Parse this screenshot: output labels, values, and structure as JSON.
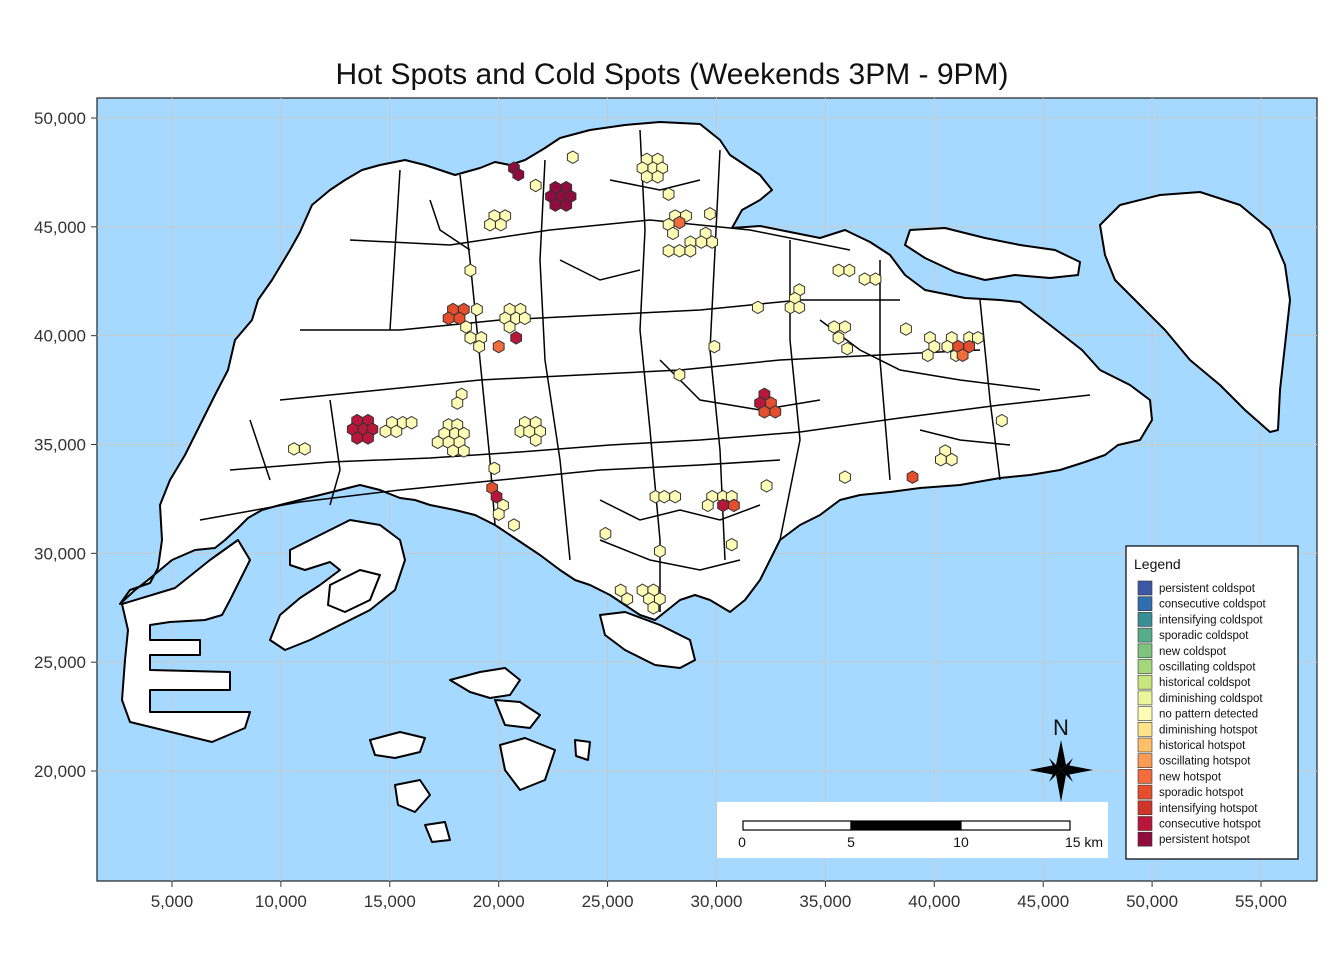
{
  "title": "Hot Spots and Cold Spots (Weekends 3PM - 9PM)",
  "colors": {
    "sea": "#a6d9ff",
    "land": "#ffffff",
    "no_pattern": "#fffcb5",
    "oscillating_hotspot": "#f26c3c",
    "sporadic_hotspot": "#e44e2d",
    "consecutive_hotspot": "#b8173b",
    "persistent_hotspot": "#900c3f"
  },
  "axes": {
    "x_ticks": [
      "5,000",
      "10,000",
      "15,000",
      "20,000",
      "25,000",
      "30,000",
      "35,000",
      "40,000",
      "45,000",
      "50,000",
      "55,000"
    ],
    "y_ticks": [
      "50,000",
      "45,000",
      "40,000",
      "35,000",
      "30,000",
      "25,000",
      "20,000"
    ],
    "grid": true
  },
  "legend": {
    "title": "Legend",
    "placement": "bottom-right",
    "items": [
      {
        "label": "persistent coldspot",
        "color": "#3b58a6"
      },
      {
        "label": "consecutive coldspot",
        "color": "#2f6fae"
      },
      {
        "label": "intensifying coldspot",
        "color": "#3a8f97"
      },
      {
        "label": "sporadic coldspot",
        "color": "#57ad8a"
      },
      {
        "label": "new coldspot",
        "color": "#7ec47d"
      },
      {
        "label": "oscillating coldspot",
        "color": "#a4d779"
      },
      {
        "label": "historical coldspot",
        "color": "#c8e77f"
      },
      {
        "label": "diminishing coldspot",
        "color": "#eaf59c"
      },
      {
        "label": "no pattern detected",
        "color": "#fffcb5"
      },
      {
        "label": "diminishing hotspot",
        "color": "#fde48a"
      },
      {
        "label": "historical hotspot",
        "color": "#fdc06a"
      },
      {
        "label": "oscillating hotspot",
        "color": "#f99b55"
      },
      {
        "label": "new hotspot",
        "color": "#f26c3c"
      },
      {
        "label": "sporadic hotspot",
        "color": "#e44e2d"
      },
      {
        "label": "intensifying hotspot",
        "color": "#d0352c"
      },
      {
        "label": "consecutive hotspot",
        "color": "#b8173b"
      },
      {
        "label": "persistent hotspot",
        "color": "#900c3f"
      }
    ]
  },
  "scale_bar": {
    "labels": [
      "0",
      "5",
      "10",
      "15 km"
    ]
  },
  "north_arrow": {
    "label": "N"
  },
  "hotspots": [
    {
      "x": 20700,
      "y": 47700,
      "cls": "persistent_hotspot"
    },
    {
      "x": 20900,
      "y": 47400,
      "cls": "persistent_hotspot"
    },
    {
      "x": 22600,
      "y": 46800,
      "cls": "persistent_hotspot"
    },
    {
      "x": 23100,
      "y": 46800,
      "cls": "persistent_hotspot"
    },
    {
      "x": 22400,
      "y": 46400,
      "cls": "persistent_hotspot"
    },
    {
      "x": 22900,
      "y": 46400,
      "cls": "persistent_hotspot"
    },
    {
      "x": 23300,
      "y": 46400,
      "cls": "persistent_hotspot"
    },
    {
      "x": 22600,
      "y": 46000,
      "cls": "persistent_hotspot"
    },
    {
      "x": 23100,
      "y": 46000,
      "cls": "persistent_hotspot"
    },
    {
      "x": 13500,
      "y": 36100,
      "cls": "consecutive_hotspot"
    },
    {
      "x": 14000,
      "y": 36100,
      "cls": "consecutive_hotspot"
    },
    {
      "x": 13300,
      "y": 35700,
      "cls": "consecutive_hotspot"
    },
    {
      "x": 13800,
      "y": 35700,
      "cls": "consecutive_hotspot"
    },
    {
      "x": 14200,
      "y": 35700,
      "cls": "consecutive_hotspot"
    },
    {
      "x": 13500,
      "y": 35300,
      "cls": "consecutive_hotspot"
    },
    {
      "x": 14000,
      "y": 35300,
      "cls": "consecutive_hotspot"
    },
    {
      "x": 32200,
      "y": 37300,
      "cls": "consecutive_hotspot"
    },
    {
      "x": 32000,
      "y": 36900,
      "cls": "consecutive_hotspot"
    },
    {
      "x": 32500,
      "y": 36900,
      "cls": "sporadic_hotspot"
    },
    {
      "x": 32200,
      "y": 36500,
      "cls": "sporadic_hotspot"
    },
    {
      "x": 32700,
      "y": 36500,
      "cls": "sporadic_hotspot"
    },
    {
      "x": 17900,
      "y": 41200,
      "cls": "sporadic_hotspot"
    },
    {
      "x": 18400,
      "y": 41200,
      "cls": "sporadic_hotspot"
    },
    {
      "x": 17700,
      "y": 40800,
      "cls": "sporadic_hotspot"
    },
    {
      "x": 18200,
      "y": 40800,
      "cls": "sporadic_hotspot"
    },
    {
      "x": 20800,
      "y": 39900,
      "cls": "consecutive_hotspot"
    },
    {
      "x": 20000,
      "y": 39500,
      "cls": "oscillating_hotspot"
    },
    {
      "x": 19700,
      "y": 33000,
      "cls": "sporadic_hotspot"
    },
    {
      "x": 19900,
      "y": 32600,
      "cls": "consecutive_hotspot"
    },
    {
      "x": 30300,
      "y": 32200,
      "cls": "consecutive_hotspot"
    },
    {
      "x": 30800,
      "y": 32200,
      "cls": "sporadic_hotspot"
    },
    {
      "x": 39000,
      "y": 33500,
      "cls": "sporadic_hotspot"
    },
    {
      "x": 41100,
      "y": 39500,
      "cls": "sporadic_hotspot"
    },
    {
      "x": 41600,
      "y": 39500,
      "cls": "sporadic_hotspot"
    },
    {
      "x": 41300,
      "y": 39100,
      "cls": "oscillating_hotspot"
    },
    {
      "x": 28300,
      "y": 45200,
      "cls": "oscillating_hotspot"
    }
  ],
  "nopattern": [
    [
      23400,
      48200
    ],
    [
      26800,
      48100
    ],
    [
      27300,
      48100
    ],
    [
      26600,
      47700
    ],
    [
      27100,
      47700
    ],
    [
      27500,
      47700
    ],
    [
      26800,
      47300
    ],
    [
      27300,
      47300
    ],
    [
      21700,
      46900
    ],
    [
      27800,
      46500
    ],
    [
      19800,
      45500
    ],
    [
      20300,
      45500
    ],
    [
      19600,
      45100
    ],
    [
      20100,
      45100
    ],
    [
      28100,
      45500
    ],
    [
      28600,
      45500
    ],
    [
      27800,
      45100
    ],
    [
      28000,
      44700
    ],
    [
      29700,
      45600
    ],
    [
      29500,
      44700
    ],
    [
      29300,
      44300
    ],
    [
      29800,
      44300
    ],
    [
      28800,
      44300
    ],
    [
      28300,
      43900
    ],
    [
      28800,
      43900
    ],
    [
      27800,
      43900
    ],
    [
      18700,
      43000
    ],
    [
      35600,
      43000
    ],
    [
      36100,
      43000
    ],
    [
      36800,
      42600
    ],
    [
      37300,
      42600
    ],
    [
      33800,
      42100
    ],
    [
      33600,
      41700
    ],
    [
      33400,
      41300
    ],
    [
      33800,
      41300
    ],
    [
      31900,
      41300
    ],
    [
      19000,
      41200
    ],
    [
      20500,
      41200
    ],
    [
      21000,
      41200
    ],
    [
      20300,
      40800
    ],
    [
      20800,
      40800
    ],
    [
      21200,
      40800
    ],
    [
      18500,
      40400
    ],
    [
      20500,
      40400
    ],
    [
      35400,
      40400
    ],
    [
      35900,
      40400
    ],
    [
      38700,
      40300
    ],
    [
      39800,
      39900
    ],
    [
      18700,
      39900
    ],
    [
      19200,
      39900
    ],
    [
      35600,
      39900
    ],
    [
      40800,
      39900
    ],
    [
      41600,
      39900
    ],
    [
      42000,
      39900
    ],
    [
      29900,
      39500
    ],
    [
      19100,
      39500
    ],
    [
      36000,
      39400
    ],
    [
      40000,
      39500
    ],
    [
      40600,
      39500
    ],
    [
      39700,
      39100
    ],
    [
      41000,
      39100
    ],
    [
      28300,
      38200
    ],
    [
      18300,
      37300
    ],
    [
      18100,
      36900
    ],
    [
      15100,
      36000
    ],
    [
      15600,
      36000
    ],
    [
      16000,
      36000
    ],
    [
      14800,
      35600
    ],
    [
      15300,
      35600
    ],
    [
      17700,
      35900
    ],
    [
      18100,
      35900
    ],
    [
      21200,
      36000
    ],
    [
      21700,
      36000
    ],
    [
      21000,
      35600
    ],
    [
      21400,
      35600
    ],
    [
      21900,
      35600
    ],
    [
      21700,
      35200
    ],
    [
      17500,
      35500
    ],
    [
      18000,
      35500
    ],
    [
      18400,
      35500
    ],
    [
      17200,
      35100
    ],
    [
      17700,
      35100
    ],
    [
      18200,
      35100
    ],
    [
      17900,
      34700
    ],
    [
      18400,
      34700
    ],
    [
      10600,
      34800
    ],
    [
      11100,
      34800
    ],
    [
      43100,
      36100
    ],
    [
      40500,
      34700
    ],
    [
      40300,
      34300
    ],
    [
      40800,
      34300
    ],
    [
      35900,
      33500
    ],
    [
      19800,
      33900
    ],
    [
      27200,
      32600
    ],
    [
      27600,
      32600
    ],
    [
      28100,
      32600
    ],
    [
      29800,
      32600
    ],
    [
      30300,
      32600
    ],
    [
      30700,
      32600
    ],
    [
      20200,
      32200
    ],
    [
      20000,
      31800
    ],
    [
      29600,
      32200
    ],
    [
      32300,
      33100
    ],
    [
      20700,
      31300
    ],
    [
      24900,
      30900
    ],
    [
      30700,
      30400
    ],
    [
      27400,
      30100
    ],
    [
      25600,
      28300
    ],
    [
      25900,
      27900
    ],
    [
      26600,
      28300
    ],
    [
      27100,
      28300
    ],
    [
      26900,
      27900
    ],
    [
      27400,
      27900
    ],
    [
      27100,
      27500
    ]
  ]
}
